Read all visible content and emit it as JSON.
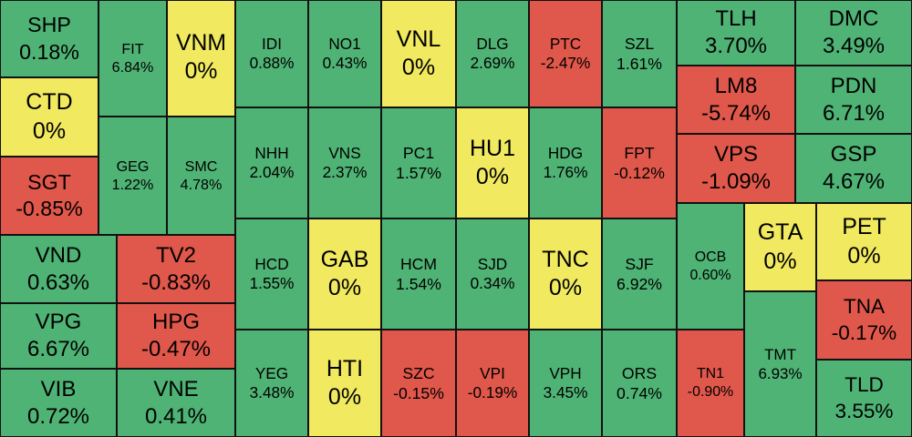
{
  "tiles": [
    {
      "ticker": "SHP",
      "change": "0.18%",
      "color": "#4fb375"
    },
    {
      "ticker": "CTD",
      "change": "0%",
      "color": "#f1e95f"
    },
    {
      "ticker": "SGT",
      "change": "-0.85%",
      "color": "#e0574b"
    },
    {
      "ticker": "VND",
      "change": "0.63%",
      "color": "#4fb375"
    },
    {
      "ticker": "VPG",
      "change": "6.67%",
      "color": "#4fb375"
    },
    {
      "ticker": "VIB",
      "change": "0.72%",
      "color": "#4fb375"
    },
    {
      "ticker": "FIT",
      "change": "6.84%",
      "color": "#4fb375"
    },
    {
      "ticker": "GEG",
      "change": "1.22%",
      "color": "#4fb375"
    },
    {
      "ticker": "VNM",
      "change": "0%",
      "color": "#f1e95f"
    },
    {
      "ticker": "SMC",
      "change": "4.78%",
      "color": "#4fb375"
    },
    {
      "ticker": "TV2",
      "change": "-0.83%",
      "color": "#e0574b"
    },
    {
      "ticker": "HPG",
      "change": "-0.47%",
      "color": "#e0574b"
    },
    {
      "ticker": "VNE",
      "change": "0.41%",
      "color": "#4fb375"
    },
    {
      "ticker": "IDI",
      "change": "0.88%",
      "color": "#4fb375"
    },
    {
      "ticker": "NHH",
      "change": "2.04%",
      "color": "#4fb375"
    },
    {
      "ticker": "HCD",
      "change": "1.55%",
      "color": "#4fb375"
    },
    {
      "ticker": "YEG",
      "change": "3.48%",
      "color": "#4fb375"
    },
    {
      "ticker": "NO1",
      "change": "0.43%",
      "color": "#4fb375"
    },
    {
      "ticker": "VNS",
      "change": "2.37%",
      "color": "#4fb375"
    },
    {
      "ticker": "GAB",
      "change": "0%",
      "color": "#f1e95f"
    },
    {
      "ticker": "HTI",
      "change": "0%",
      "color": "#f1e95f"
    },
    {
      "ticker": "VNL",
      "change": "0%",
      "color": "#f1e95f"
    },
    {
      "ticker": "PC1",
      "change": "1.57%",
      "color": "#4fb375"
    },
    {
      "ticker": "HCM",
      "change": "1.54%",
      "color": "#4fb375"
    },
    {
      "ticker": "SZC",
      "change": "-0.15%",
      "color": "#e0574b"
    },
    {
      "ticker": "DLG",
      "change": "2.69%",
      "color": "#4fb375"
    },
    {
      "ticker": "HU1",
      "change": "0%",
      "color": "#f1e95f"
    },
    {
      "ticker": "SJD",
      "change": "0.34%",
      "color": "#4fb375"
    },
    {
      "ticker": "VPI",
      "change": "-0.19%",
      "color": "#e0574b"
    },
    {
      "ticker": "PTC",
      "change": "-2.47%",
      "color": "#e0574b"
    },
    {
      "ticker": "HDG",
      "change": "1.76%",
      "color": "#4fb375"
    },
    {
      "ticker": "TNC",
      "change": "0%",
      "color": "#f1e95f"
    },
    {
      "ticker": "VPH",
      "change": "3.45%",
      "color": "#4fb375"
    },
    {
      "ticker": "SZL",
      "change": "1.61%",
      "color": "#4fb375"
    },
    {
      "ticker": "FPT",
      "change": "-0.12%",
      "color": "#e0574b"
    },
    {
      "ticker": "SJF",
      "change": "6.92%",
      "color": "#4fb375"
    },
    {
      "ticker": "ORS",
      "change": "0.74%",
      "color": "#4fb375"
    },
    {
      "ticker": "TLH",
      "change": "3.70%",
      "color": "#4fb375"
    },
    {
      "ticker": "LM8",
      "change": "-5.74%",
      "color": "#e0574b"
    },
    {
      "ticker": "VPS",
      "change": "-1.09%",
      "color": "#e0574b"
    },
    {
      "ticker": "DMC",
      "change": "3.49%",
      "color": "#4fb375"
    },
    {
      "ticker": "PDN",
      "change": "6.71%",
      "color": "#4fb375"
    },
    {
      "ticker": "GSP",
      "change": "4.67%",
      "color": "#4fb375"
    },
    {
      "ticker": "OCB",
      "change": "0.60%",
      "color": "#4fb375"
    },
    {
      "ticker": "TN1",
      "change": "-0.90%",
      "color": "#e0574b"
    },
    {
      "ticker": "GTA",
      "change": "0%",
      "color": "#f1e95f"
    },
    {
      "ticker": "TMT",
      "change": "6.93%",
      "color": "#4fb375"
    },
    {
      "ticker": "PET",
      "change": "0%",
      "color": "#f1e95f"
    },
    {
      "ticker": "TNA",
      "change": "-0.17%",
      "color": "#e0574b"
    },
    {
      "ticker": "TLD",
      "change": "3.55%",
      "color": "#4fb375"
    }
  ]
}
